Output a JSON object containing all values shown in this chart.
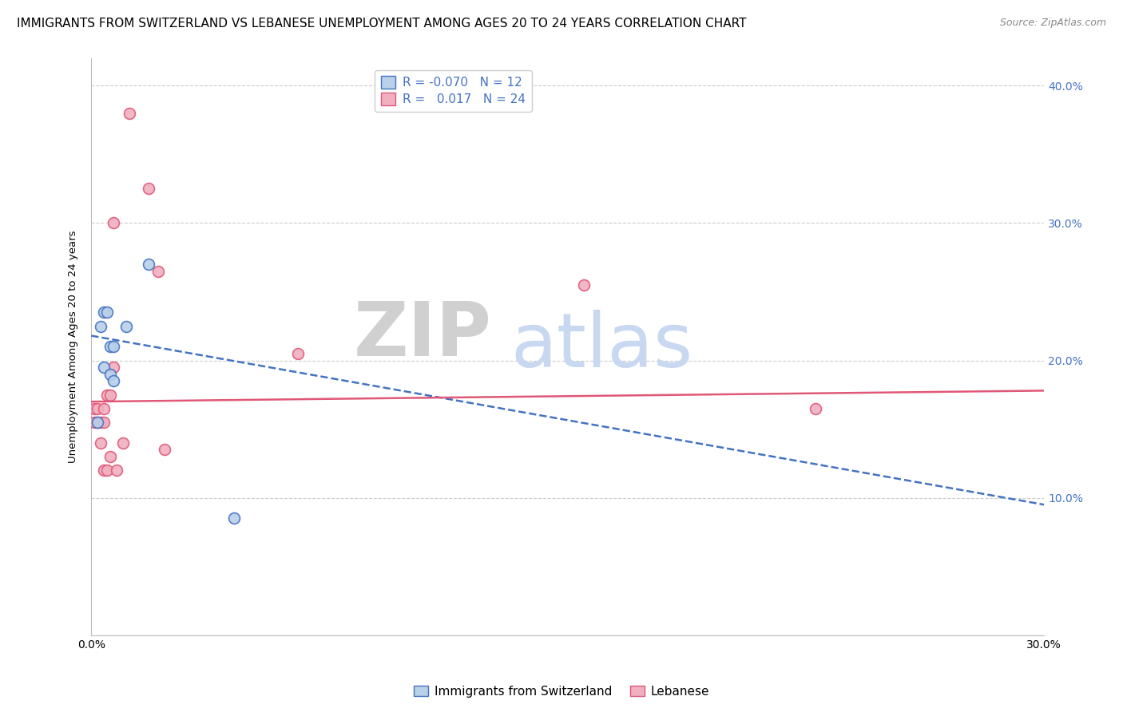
{
  "title": "IMMIGRANTS FROM SWITZERLAND VS LEBANESE UNEMPLOYMENT AMONG AGES 20 TO 24 YEARS CORRELATION CHART",
  "source": "Source: ZipAtlas.com",
  "ylabel": "Unemployment Among Ages 20 to 24 years",
  "legend_label1": "Immigrants from Switzerland",
  "legend_label2": "Lebanese",
  "watermark_zip": "ZIP",
  "watermark_atlas": "atlas",
  "xmin": 0.0,
  "xmax": 0.3,
  "ymin": 0.0,
  "ymax": 0.42,
  "xticks": [
    0.0,
    0.05,
    0.1,
    0.15,
    0.2,
    0.25,
    0.3
  ],
  "yticks_right": [
    0.0,
    0.1,
    0.2,
    0.3,
    0.4
  ],
  "ytick_labels_right": [
    "",
    "10.0%",
    "20.0%",
    "30.0%",
    "40.0%"
  ],
  "xtick_labels": [
    "0.0%",
    "",
    "",
    "",
    "",
    "",
    "30.0%"
  ],
  "color_swiss": "#b8d0e8",
  "color_lebanese": "#f0b0c0",
  "color_swiss_line": "#4472c4",
  "color_lebanese_line": "#e05878",
  "grid_color": "#cccccc",
  "background_color": "#ffffff",
  "swiss_x": [
    0.002,
    0.003,
    0.004,
    0.004,
    0.005,
    0.006,
    0.006,
    0.007,
    0.007,
    0.011,
    0.018,
    0.045
  ],
  "swiss_y": [
    0.155,
    0.225,
    0.235,
    0.195,
    0.235,
    0.21,
    0.19,
    0.21,
    0.185,
    0.225,
    0.27,
    0.085
  ],
  "lebanese_x": [
    0.001,
    0.001,
    0.002,
    0.002,
    0.003,
    0.003,
    0.004,
    0.004,
    0.004,
    0.005,
    0.005,
    0.006,
    0.006,
    0.007,
    0.007,
    0.008,
    0.01,
    0.012,
    0.018,
    0.021,
    0.023,
    0.065,
    0.155,
    0.228
  ],
  "lebanese_y": [
    0.165,
    0.155,
    0.155,
    0.165,
    0.155,
    0.14,
    0.155,
    0.12,
    0.165,
    0.12,
    0.175,
    0.175,
    0.13,
    0.3,
    0.195,
    0.12,
    0.14,
    0.38,
    0.325,
    0.265,
    0.135,
    0.205,
    0.255,
    0.165
  ],
  "swiss_trend_y_start": 0.218,
  "swiss_trend_y_end": 0.095,
  "lebanese_trend_y_start": 0.17,
  "lebanese_trend_y_end": 0.178,
  "title_fontsize": 11,
  "source_fontsize": 9,
  "axis_fontsize": 9.5,
  "tick_fontsize": 10,
  "legend_fontsize": 11,
  "watermark_fontsize_zip": 68,
  "watermark_fontsize_atlas": 68,
  "watermark_color_zip": "#d0d0d0",
  "watermark_color_atlas": "#c8d8f0",
  "marker_size": 100,
  "marker_lw": 1.2,
  "trend_lw": 1.8
}
